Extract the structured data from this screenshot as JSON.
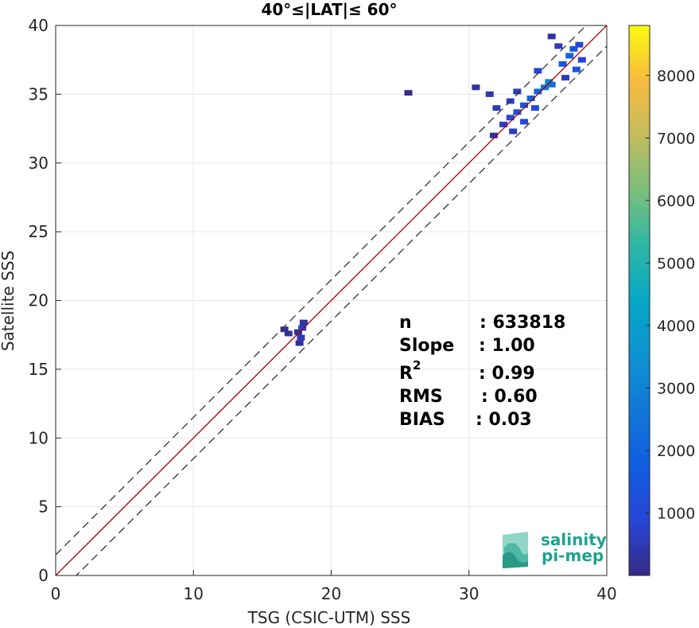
{
  "chart_data": {
    "type": "heatmap",
    "title": "40°≤|LAT|≤ 60°",
    "xlabel": "TSG (CSIC-UTM) SSS",
    "ylabel": "Satellite SSS",
    "xlim": [
      0,
      40
    ],
    "ylim": [
      0,
      40
    ],
    "x_ticks": [
      "0",
      "10",
      "20",
      "30",
      "40"
    ],
    "y_ticks": [
      "0",
      "5",
      "10",
      "15",
      "20",
      "25",
      "30",
      "35",
      "40"
    ],
    "grid": true,
    "reference_lines": [
      {
        "name": "1:1 line",
        "slope": 1,
        "intercept": 0,
        "color": "#a00000",
        "style": "solid"
      },
      {
        "name": "upper bound",
        "slope": 1,
        "intercept": 1.5,
        "color": "#333333",
        "style": "dashed"
      },
      {
        "name": "lower bound",
        "slope": 1,
        "intercept": -1.5,
        "color": "#333333",
        "style": "dashed"
      }
    ],
    "colorbar": {
      "range": [
        0,
        8800
      ],
      "ticks": [
        "1000",
        "2000",
        "3000",
        "4000",
        "5000",
        "6000",
        "7000",
        "8000"
      ],
      "tick_values": [
        1000,
        2000,
        3000,
        4000,
        5000,
        6000,
        7000,
        8000
      ],
      "colormap": "parula"
    },
    "density_clusters": [
      {
        "x": 17.6,
        "y": 17.7,
        "count": 250
      },
      {
        "x": 17.9,
        "y": 18.0,
        "count": 700
      },
      {
        "x": 17.8,
        "y": 17.3,
        "count": 500
      },
      {
        "x": 16.6,
        "y": 17.9,
        "count": 120
      },
      {
        "x": 16.9,
        "y": 17.6,
        "count": 150
      },
      {
        "x": 18.0,
        "y": 18.4,
        "count": 300
      },
      {
        "x": 17.7,
        "y": 16.9,
        "count": 200
      },
      {
        "x": 31.8,
        "y": 32.0,
        "count": 300
      },
      {
        "x": 32.5,
        "y": 32.8,
        "count": 600
      },
      {
        "x": 33.0,
        "y": 33.3,
        "count": 900
      },
      {
        "x": 33.5,
        "y": 33.7,
        "count": 1200
      },
      {
        "x": 34.0,
        "y": 34.2,
        "count": 1500
      },
      {
        "x": 34.5,
        "y": 34.7,
        "count": 1800
      },
      {
        "x": 35.0,
        "y": 35.2,
        "count": 2200
      },
      {
        "x": 35.5,
        "y": 35.5,
        "count": 2600
      },
      {
        "x": 35.8,
        "y": 35.9,
        "count": 3200
      },
      {
        "x": 36.0,
        "y": 35.7,
        "count": 2400
      },
      {
        "x": 33.0,
        "y": 34.5,
        "count": 700
      },
      {
        "x": 32.0,
        "y": 34.0,
        "count": 500
      },
      {
        "x": 33.5,
        "y": 35.2,
        "count": 600
      },
      {
        "x": 31.5,
        "y": 35.0,
        "count": 400
      },
      {
        "x": 30.5,
        "y": 35.5,
        "count": 250
      },
      {
        "x": 34.0,
        "y": 33.0,
        "count": 900
      },
      {
        "x": 33.2,
        "y": 32.3,
        "count": 600
      },
      {
        "x": 34.8,
        "y": 34.0,
        "count": 1000
      },
      {
        "x": 36.8,
        "y": 37.2,
        "count": 1600
      },
      {
        "x": 37.3,
        "y": 37.8,
        "count": 2000
      },
      {
        "x": 37.6,
        "y": 38.3,
        "count": 1500
      },
      {
        "x": 37.8,
        "y": 36.8,
        "count": 1400
      },
      {
        "x": 38.0,
        "y": 38.6,
        "count": 900
      },
      {
        "x": 36.5,
        "y": 38.5,
        "count": 500
      },
      {
        "x": 38.2,
        "y": 37.5,
        "count": 800
      },
      {
        "x": 36.0,
        "y": 39.2,
        "count": 300
      },
      {
        "x": 35.0,
        "y": 36.7,
        "count": 800
      },
      {
        "x": 37.0,
        "y": 36.2,
        "count": 600
      },
      {
        "x": 25.6,
        "y": 35.1,
        "count": 50
      }
    ]
  },
  "stats": {
    "n_label": "n",
    "n_value": ": 633818",
    "slope_label": "Slope",
    "slope_value": ": 1.00",
    "r2_label": "R",
    "r2_sup": "2",
    "r2_value": ": 0.99",
    "rms_label": "RMS",
    "rms_value": ": 0.60",
    "bias_label": "BIAS",
    "bias_value": ": 0.03"
  },
  "logo": {
    "line1": "salinity",
    "line2": "pi-mep",
    "color": "#1fa38f"
  }
}
